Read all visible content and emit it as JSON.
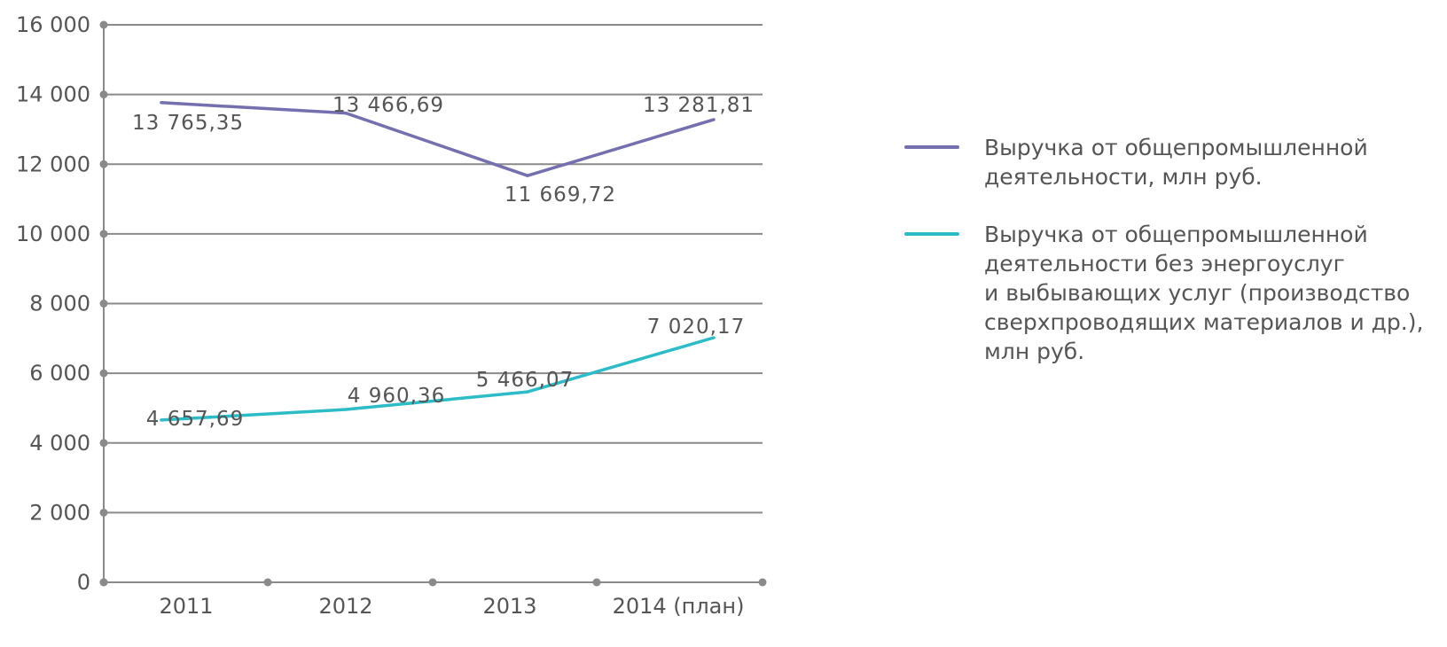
{
  "colors": {
    "series1": "#7470b0",
    "series2": "#2bbcc8",
    "grid": "#8a8a8a",
    "axis": "#8a8a8a"
  },
  "chart_data": {
    "type": "line",
    "title": "",
    "xlabel": "",
    "ylabel": "",
    "categories": [
      "2011",
      "2012",
      "2013",
      "2014 (план)"
    ],
    "ylim": [
      0,
      16000
    ],
    "yticks": [
      0,
      2000,
      4000,
      6000,
      8000,
      10000,
      12000,
      14000,
      16000
    ],
    "ytick_labels": [
      "0",
      "2 000",
      "4 000",
      "6 000",
      "8 000",
      "10 000",
      "12 000",
      "14 000",
      "16 000"
    ],
    "grid": true,
    "legend_position": "right",
    "series": [
      {
        "name": "Выручка от общепромышленной деятельности, млн руб.",
        "values": [
          13765.35,
          13466.69,
          11669.72,
          13281.81
        ],
        "labels": [
          "13 765,35",
          "13 466,69",
          "11 669,72",
          "13 281,81"
        ]
      },
      {
        "name": "Выручка от общепромышленной деятельности без энергоуслуг и выбывающих услуг (производство сверхпроводящих материалов и др.), млн руб.",
        "values": [
          4657.69,
          4960.36,
          5466.07,
          7020.17
        ],
        "labels": [
          "4 657,69",
          "4 960,36",
          "5 466,07",
          "7 020,17"
        ]
      }
    ]
  },
  "legend": {
    "items": [
      {
        "text": "Выручка от общепромышленной\nдеятельности, млн руб."
      },
      {
        "text": "Выручка от общепромышленной\nдеятельности без энергоуслуг\nи выбывающих услуг (производство\nсверхпроводящих материалов и др.),\nмлн руб."
      }
    ]
  }
}
